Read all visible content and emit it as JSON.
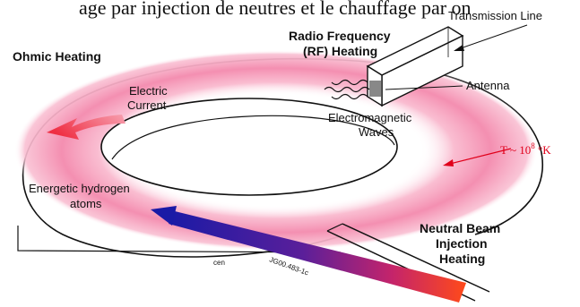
{
  "top_caption": "age par injection de neutres et le chauffage par on",
  "labels": {
    "transmission_line": "Transmission Line",
    "rf_heating_line1": "Radio Frequency",
    "rf_heating_line2": "(RF) Heating",
    "ohmic_heating": "Ohmic Heating",
    "antenna": "Antenna",
    "electric_current_line1": "Electric",
    "electric_current_line2": "Current",
    "em_waves_line1": "Electromagnetic",
    "em_waves_line2": "Waves",
    "temperature_prefix": "T ~ 10",
    "temperature_exponent": "8",
    "temperature_unit": " °K",
    "energetic_line1": "Energetic hydrogen",
    "energetic_line2": "atoms",
    "nbi_line1": "Neutral Beam",
    "nbi_line2": "Injection",
    "nbi_line3": "Heating",
    "small_mark": "cen",
    "figure_code": "JG00.483-1c"
  },
  "colors": {
    "plasma_glow": "#f7a6c1",
    "plasma_core": "#f48fb1",
    "current_arrow": "#f0435a",
    "temperature_text": "#e0001b",
    "beam_start": "#1a1aa6",
    "beam_end": "#ff3d1a",
    "outline": "#111111"
  }
}
